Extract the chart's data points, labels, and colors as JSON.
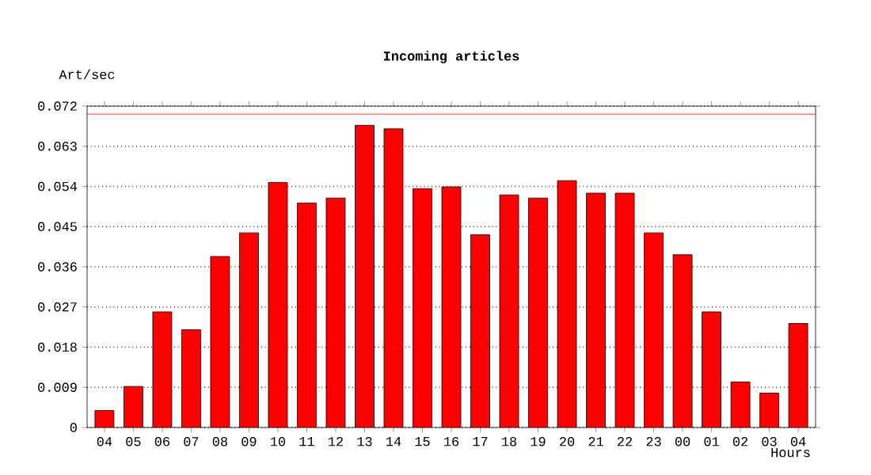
{
  "chart_data": {
    "type": "bar",
    "title": "Incoming articles",
    "xlabel": "Hours",
    "ylabel": "Art/sec",
    "categories": [
      "04",
      "05",
      "06",
      "07",
      "08",
      "09",
      "10",
      "11",
      "12",
      "13",
      "14",
      "15",
      "16",
      "17",
      "18",
      "19",
      "20",
      "21",
      "22",
      "23",
      "00",
      "01",
      "02",
      "03",
      "04"
    ],
    "values": [
      0.0038,
      0.0092,
      0.0259,
      0.0219,
      0.0383,
      0.0436,
      0.0549,
      0.0503,
      0.0514,
      0.0677,
      0.0669,
      0.0535,
      0.0539,
      0.0432,
      0.0521,
      0.0514,
      0.0553,
      0.0525,
      0.0525,
      0.0436,
      0.0387,
      0.0259,
      0.0102,
      0.0077,
      0.0233
    ],
    "color": "#ff0000",
    "ylim": [
      0,
      0.072
    ],
    "yticks": [
      0,
      0.009,
      0.018,
      0.027,
      0.036,
      0.045,
      0.054,
      0.063,
      0.072
    ],
    "grid": "y",
    "ref_lines": [
      {
        "axis": "y",
        "value": 0.0702,
        "color": "#ff0000",
        "line_style": "solid"
      }
    ]
  }
}
